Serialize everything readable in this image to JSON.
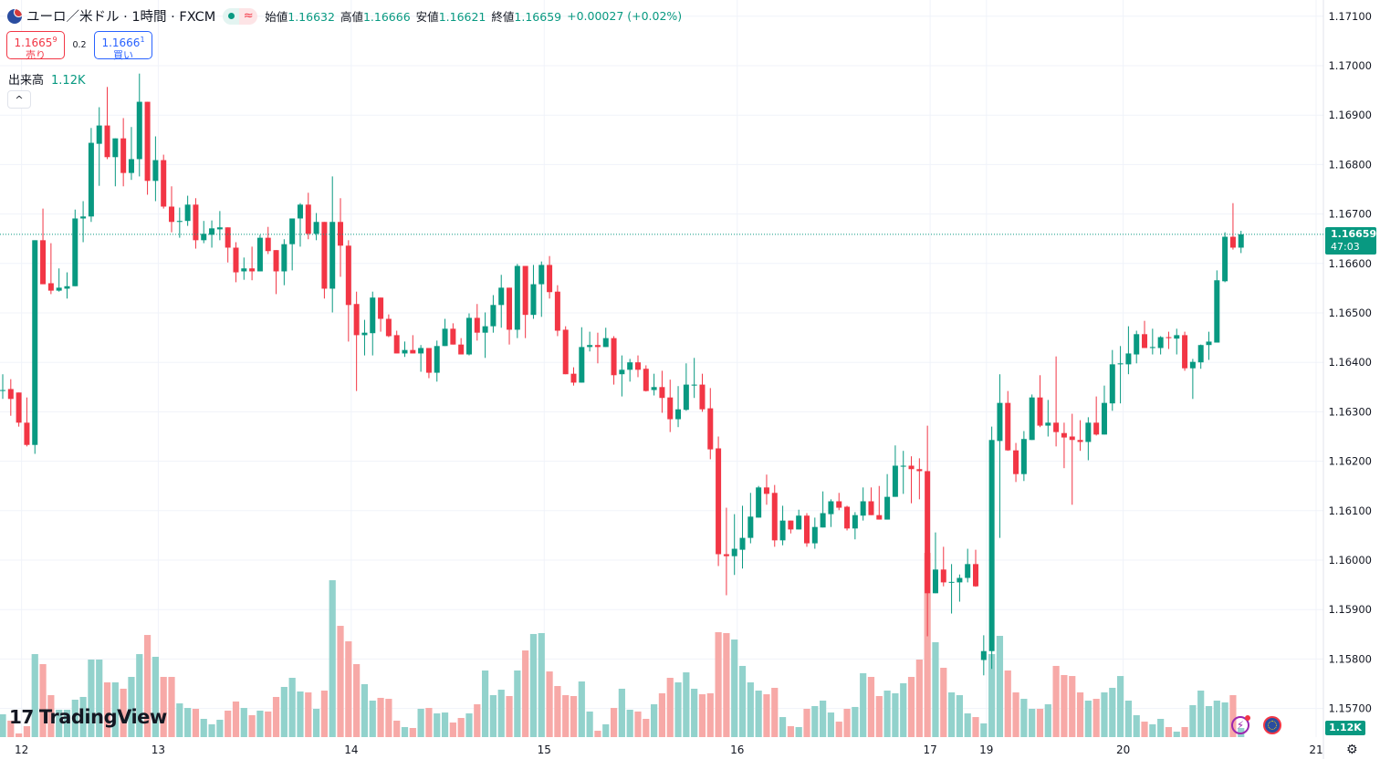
{
  "header": {
    "title": "ユーロ／米ドル · 1時間 · FXCM",
    "status_icon": "market-open-dot",
    "approx_icon": "≈",
    "ohlc": [
      {
        "label": "始値",
        "value": "1.16632"
      },
      {
        "label": "高値",
        "value": "1.16666"
      },
      {
        "label": "安値",
        "value": "1.16621"
      },
      {
        "label": "終値",
        "value": "1.16659"
      }
    ],
    "change": "+0.00027 (+0.02%)"
  },
  "trade": {
    "sell_price": "1.1665",
    "sell_sup": "9",
    "sell_label": "売り",
    "spread": "0.2",
    "buy_price": "1.1666",
    "buy_sup": "1",
    "buy_label": "買い"
  },
  "volume_legend": {
    "label": "出来高",
    "value": "1.12K"
  },
  "collapse_icon": "^",
  "logo": {
    "mark": "17",
    "text": "TradingView"
  },
  "price_axis": {
    "ticks": [
      "1.17100",
      "1.17000",
      "1.16900",
      "1.16800",
      "1.16700",
      "1.16600",
      "1.16500",
      "1.16400",
      "1.16300",
      "1.16200",
      "1.16100",
      "1.16000",
      "1.15900",
      "1.15800",
      "1.15700"
    ],
    "last_price": "1.16659",
    "countdown": "47:03",
    "volume_label": "1.12K"
  },
  "time_axis": {
    "ticks": [
      {
        "label": "12",
        "bar": 2
      },
      {
        "label": "13",
        "bar": 19
      },
      {
        "label": "14",
        "bar": 43
      },
      {
        "label": "15",
        "bar": 67
      },
      {
        "label": "16",
        "bar": 91
      },
      {
        "label": "17",
        "bar": 115
      },
      {
        "label": "19",
        "bar": 122
      },
      {
        "label": "20",
        "bar": 139
      },
      {
        "label": "21",
        "bar": 163
      }
    ]
  },
  "colors": {
    "up": "#089981",
    "down": "#f23645",
    "volume_up": "#92d2cc",
    "volume_down": "#f7a9a7",
    "grid": "#f0f3fa"
  },
  "chart_data": {
    "type": "candlestick",
    "interval": "1時間",
    "ylim": [
      1.15641,
      1.17132
    ],
    "volume_unit": "K",
    "grid": true,
    "ohlc": [
      [
        1.16344,
        1.16376,
        1.16326,
        1.16344
      ],
      [
        1.16346,
        1.16366,
        1.16292,
        1.16326
      ],
      [
        1.16339,
        1.16339,
        1.1627,
        1.16278
      ],
      [
        1.16278,
        1.16329,
        1.1623,
        1.16233
      ],
      [
        1.16233,
        1.16647,
        1.16215,
        1.16647
      ],
      [
        1.16647,
        1.16711,
        1.16558,
        1.16558
      ],
      [
        1.1656,
        1.16641,
        1.16538,
        1.16545
      ],
      [
        1.16545,
        1.1659,
        1.16543,
        1.16551
      ],
      [
        1.16549,
        1.16582,
        1.16529,
        1.16554
      ],
      [
        1.16554,
        1.16709,
        1.16554,
        1.16691
      ],
      [
        1.16691,
        1.16726,
        1.16643,
        1.16695
      ],
      [
        1.16695,
        1.16874,
        1.16684,
        1.16844
      ],
      [
        1.16842,
        1.16916,
        1.16757,
        1.16879
      ],
      [
        1.16879,
        1.16957,
        1.16811,
        1.16815
      ],
      [
        1.16815,
        1.16853,
        1.16756,
        1.16853
      ],
      [
        1.16853,
        1.16894,
        1.16756,
        1.16783
      ],
      [
        1.16783,
        1.16876,
        1.16769,
        1.16811
      ],
      [
        1.16811,
        1.16984,
        1.16776,
        1.16927
      ],
      [
        1.16927,
        1.16927,
        1.16739,
        1.16767
      ],
      [
        1.16767,
        1.16857,
        1.16726,
        1.16809
      ],
      [
        1.16809,
        1.1682,
        1.16711,
        1.16715
      ],
      [
        1.16715,
        1.16756,
        1.16663,
        1.16684
      ],
      [
        1.16684,
        1.16713,
        1.16652,
        1.16686
      ],
      [
        1.16686,
        1.16737,
        1.16676,
        1.16719
      ],
      [
        1.16719,
        1.16732,
        1.1663,
        1.16647
      ],
      [
        1.16647,
        1.16686,
        1.16641,
        1.1666
      ],
      [
        1.16658,
        1.16687,
        1.16632,
        1.16671
      ],
      [
        1.16669,
        1.16706,
        1.16647,
        1.16673
      ],
      [
        1.16673,
        1.16673,
        1.16602,
        1.16632
      ],
      [
        1.16632,
        1.16643,
        1.16562,
        1.16582
      ],
      [
        1.16584,
        1.16612,
        1.16567,
        1.1659
      ],
      [
        1.1659,
        1.16634,
        1.16566,
        1.16584
      ],
      [
        1.16584,
        1.16658,
        1.16584,
        1.16652
      ],
      [
        1.16652,
        1.16674,
        1.16619,
        1.16625
      ],
      [
        1.16627,
        1.16627,
        1.16538,
        1.16584
      ],
      [
        1.16584,
        1.16649,
        1.16556,
        1.16639
      ],
      [
        1.16639,
        1.16691,
        1.16586,
        1.16691
      ],
      [
        1.16691,
        1.16722,
        1.16634,
        1.16719
      ],
      [
        1.16719,
        1.16743,
        1.16649,
        1.1666
      ],
      [
        1.1666,
        1.16702,
        1.16647,
        1.16684
      ],
      [
        1.16684,
        1.16684,
        1.16529,
        1.16549
      ],
      [
        1.16549,
        1.16776,
        1.16501,
        1.16684
      ],
      [
        1.16684,
        1.16732,
        1.16573,
        1.16636
      ],
      [
        1.16636,
        1.16647,
        1.16442,
        1.16516
      ],
      [
        1.16518,
        1.16543,
        1.16342,
        1.16455
      ],
      [
        1.16455,
        1.16486,
        1.16414,
        1.1646
      ],
      [
        1.16459,
        1.16543,
        1.16414,
        1.16531
      ],
      [
        1.16531,
        1.16531,
        1.16462,
        1.16488
      ],
      [
        1.16488,
        1.16497,
        1.16451,
        1.16453
      ],
      [
        1.16455,
        1.16464,
        1.16418,
        1.16418
      ],
      [
        1.16418,
        1.16442,
        1.16411,
        1.16425
      ],
      [
        1.16425,
        1.16455,
        1.16418,
        1.16418
      ],
      [
        1.16418,
        1.16435,
        1.16381,
        1.16429
      ],
      [
        1.16429,
        1.16429,
        1.16368,
        1.16379
      ],
      [
        1.16379,
        1.16444,
        1.16361,
        1.16433
      ],
      [
        1.16433,
        1.16488,
        1.16433,
        1.16468
      ],
      [
        1.16468,
        1.16479,
        1.16436,
        1.16436
      ],
      [
        1.16436,
        1.16449,
        1.16416,
        1.16416
      ],
      [
        1.16416,
        1.16499,
        1.16414,
        1.1649
      ],
      [
        1.1649,
        1.16518,
        1.16444,
        1.1646
      ],
      [
        1.1646,
        1.16501,
        1.16409,
        1.16473
      ],
      [
        1.16473,
        1.16536,
        1.1646,
        1.16516
      ],
      [
        1.16516,
        1.16577,
        1.1647,
        1.16551
      ],
      [
        1.16551,
        1.16551,
        1.16436,
        1.16466
      ],
      [
        1.16466,
        1.16599,
        1.16449,
        1.16595
      ],
      [
        1.16595,
        1.16595,
        1.16449,
        1.16496
      ],
      [
        1.16496,
        1.16597,
        1.16488,
        1.16558
      ],
      [
        1.16558,
        1.16604,
        1.16492,
        1.16597
      ],
      [
        1.16597,
        1.16615,
        1.16529,
        1.16542
      ],
      [
        1.16543,
        1.16556,
        1.16453,
        1.16464
      ],
      [
        1.16466,
        1.16473,
        1.16376,
        1.16376
      ],
      [
        1.16377,
        1.1639,
        1.16353,
        1.16359
      ],
      [
        1.16359,
        1.16471,
        1.16359,
        1.16431
      ],
      [
        1.16431,
        1.16462,
        1.16422,
        1.16435
      ],
      [
        1.16435,
        1.1646,
        1.16398,
        1.16431
      ],
      [
        1.16431,
        1.1647,
        1.16431,
        1.16449
      ],
      [
        1.16449,
        1.16453,
        1.16355,
        1.16374
      ],
      [
        1.16376,
        1.16414,
        1.16331,
        1.16385
      ],
      [
        1.16385,
        1.16407,
        1.16361,
        1.164
      ],
      [
        1.164,
        1.16414,
        1.1637,
        1.16385
      ],
      [
        1.16387,
        1.16394,
        1.16341,
        1.16342
      ],
      [
        1.16344,
        1.16377,
        1.16333,
        1.1635
      ],
      [
        1.1635,
        1.16383,
        1.16298,
        1.16328
      ],
      [
        1.16329,
        1.16365,
        1.16259,
        1.16285
      ],
      [
        1.16285,
        1.16352,
        1.16269,
        1.16305
      ],
      [
        1.16304,
        1.16398,
        1.16302,
        1.16355
      ],
      [
        1.16353,
        1.16409,
        1.16328,
        1.16355
      ],
      [
        1.16355,
        1.16377,
        1.163,
        1.16305
      ],
      [
        1.16307,
        1.16348,
        1.16204,
        1.16224
      ],
      [
        1.16226,
        1.1625,
        1.15988,
        1.16012
      ],
      [
        1.16012,
        1.16106,
        1.15929,
        1.16008
      ],
      [
        1.16008,
        1.16093,
        1.1597,
        1.16023
      ],
      [
        1.16021,
        1.1611,
        1.15983,
        1.16045
      ],
      [
        1.16045,
        1.16136,
        1.16034,
        1.16088
      ],
      [
        1.16086,
        1.1615,
        1.16086,
        1.16147
      ],
      [
        1.16147,
        1.16173,
        1.16112,
        1.16134
      ],
      [
        1.16136,
        1.16152,
        1.16027,
        1.1604
      ],
      [
        1.1604,
        1.1611,
        1.1603,
        1.1608
      ],
      [
        1.1608,
        1.1608,
        1.16054,
        1.16062
      ],
      [
        1.16062,
        1.16102,
        1.16062,
        1.1609
      ],
      [
        1.1609,
        1.16095,
        1.16027,
        1.16034
      ],
      [
        1.16034,
        1.16086,
        1.16023,
        1.16067
      ],
      [
        1.16066,
        1.16139,
        1.16066,
        1.16095
      ],
      [
        1.16093,
        1.16123,
        1.16067,
        1.16119
      ],
      [
        1.16119,
        1.16136,
        1.16101,
        1.16106
      ],
      [
        1.16108,
        1.1611,
        1.1606,
        1.16064
      ],
      [
        1.16064,
        1.16097,
        1.16042,
        1.16091
      ],
      [
        1.1609,
        1.16147,
        1.1608,
        1.16119
      ],
      [
        1.16119,
        1.16147,
        1.16091,
        1.16091
      ],
      [
        1.16091,
        1.1615,
        1.16082,
        1.16082
      ],
      [
        1.16082,
        1.16174,
        1.16082,
        1.16128
      ],
      [
        1.16128,
        1.16232,
        1.16128,
        1.16191
      ],
      [
        1.16189,
        1.16221,
        1.16134,
        1.16191
      ],
      [
        1.16191,
        1.1621,
        1.16115,
        1.16184
      ],
      [
        1.16184,
        1.16206,
        1.16123,
        1.1618
      ],
      [
        1.1618,
        1.16272,
        1.15846,
        1.15933
      ],
      [
        1.15933,
        1.16056,
        1.15933,
        1.15981
      ],
      [
        1.15981,
        1.16027,
        1.15947,
        1.15955
      ],
      [
        1.15955,
        1.15992,
        1.15892,
        1.15956
      ],
      [
        1.15955,
        1.15971,
        1.15916,
        1.15964
      ],
      [
        1.15964,
        1.16023,
        1.15955,
        1.15992
      ],
      [
        1.15992,
        1.16021,
        1.15946,
        1.15947
      ],
      [
        1.15798,
        1.15848,
        1.15767,
        1.15816
      ],
      [
        1.15816,
        1.1627,
        1.1578,
        1.16243
      ],
      [
        1.16241,
        1.16376,
        1.16045,
        1.16318
      ],
      [
        1.16318,
        1.16342,
        1.16221,
        1.16222
      ],
      [
        1.16222,
        1.16237,
        1.16158,
        1.16174
      ],
      [
        1.16174,
        1.16261,
        1.1616,
        1.16245
      ],
      [
        1.16243,
        1.16335,
        1.16243,
        1.16329
      ],
      [
        1.16329,
        1.16374,
        1.16269,
        1.16272
      ],
      [
        1.16272,
        1.16324,
        1.1625,
        1.16278
      ],
      [
        1.16278,
        1.16412,
        1.1623,
        1.16259
      ],
      [
        1.16257,
        1.16278,
        1.16186,
        1.16248
      ],
      [
        1.1625,
        1.16296,
        1.16112,
        1.16243
      ],
      [
        1.16243,
        1.16283,
        1.16221,
        1.16239
      ],
      [
        1.16239,
        1.16289,
        1.16202,
        1.16278
      ],
      [
        1.16278,
        1.16331,
        1.16252,
        1.16254
      ],
      [
        1.16254,
        1.16353,
        1.16254,
        1.16318
      ],
      [
        1.16317,
        1.16425,
        1.16302,
        1.16396
      ],
      [
        1.16396,
        1.16433,
        1.16317,
        1.16398
      ],
      [
        1.16396,
        1.16473,
        1.16376,
        1.16418
      ],
      [
        1.16416,
        1.16464,
        1.16398,
        1.16457
      ],
      [
        1.16457,
        1.16484,
        1.16429,
        1.16429
      ],
      [
        1.16429,
        1.16468,
        1.16416,
        1.16431
      ],
      [
        1.16429,
        1.16453,
        1.16416,
        1.16451
      ],
      [
        1.16451,
        1.16462,
        1.16427,
        1.16449
      ],
      [
        1.16448,
        1.16468,
        1.16416,
        1.16455
      ],
      [
        1.16455,
        1.16462,
        1.16383,
        1.16388
      ],
      [
        1.16388,
        1.16407,
        1.16326,
        1.16401
      ],
      [
        1.164,
        1.16436,
        1.16387,
        1.16435
      ],
      [
        1.16435,
        1.16462,
        1.16405,
        1.16442
      ],
      [
        1.1644,
        1.16586,
        1.1644,
        1.16566
      ],
      [
        1.16564,
        1.16663,
        1.16562,
        1.16654
      ],
      [
        1.16654,
        1.16722,
        1.16628,
        1.16632
      ],
      [
        1.16632,
        1.16666,
        1.16621,
        1.16659
      ]
    ],
    "volume": [
      2.8,
      2.02,
      0.45,
      1.34,
      10.19,
      8.96,
      5.15,
      3.36,
      3.36,
      4.59,
      4.93,
      9.52,
      9.52,
      6.72,
      6.72,
      5.94,
      7.39,
      10.19,
      12.54,
      9.86,
      7.39,
      7.39,
      4.14,
      3.58,
      3.47,
      2.24,
      1.57,
      2.13,
      3.25,
      4.37,
      3.58,
      2.69,
      3.25,
      3.14,
      4.93,
      6.16,
      7.28,
      5.6,
      5.49,
      3.47,
      5.71,
      19.26,
      13.66,
      11.76,
      8.96,
      6.5,
      4.48,
      4.82,
      4.7,
      2.02,
      1.23,
      1.12,
      3.47,
      3.58,
      2.91,
      3.02,
      1.79,
      2.35,
      2.91,
      4.03,
      8.18,
      5.15,
      5.82,
      5.04,
      8.18,
      10.64,
      12.66,
      12.77,
      8.06,
      6.27,
      5.15,
      5.04,
      6.83,
      3.14,
      0.78,
      1.57,
      3.58,
      5.94,
      3.36,
      3.14,
      2.24,
      4.03,
      5.38,
      7.28,
      6.72,
      7.95,
      5.94,
      5.26,
      5.38,
      12.88,
      12.77,
      11.98,
      8.74,
      6.72,
      5.71,
      5.26,
      6.05,
      2.46,
      1.34,
      1.23,
      3.47,
      3.81,
      4.48,
      3.02,
      1.9,
      3.47,
      3.7,
      7.84,
      7.39,
      5.04,
      5.71,
      5.38,
      6.61,
      7.39,
      9.52,
      22.62,
      11.65,
      8.51,
      5.49,
      5.15,
      2.91,
      2.46,
      1.68,
      10.19,
      12.43,
      8.18,
      5.49,
      4.7,
      3.47,
      3.47,
      4.03,
      8.74,
      7.62,
      7.5,
      5.49,
      4.48,
      4.7,
      5.49,
      6.05,
      7.5,
      4.48,
      2.69,
      1.9,
      1.57,
      2.24,
      1.23,
      0.67,
      1.23,
      3.92,
      5.71,
      3.81,
      4.48,
      4.26,
      5.15,
      1.12
    ]
  }
}
